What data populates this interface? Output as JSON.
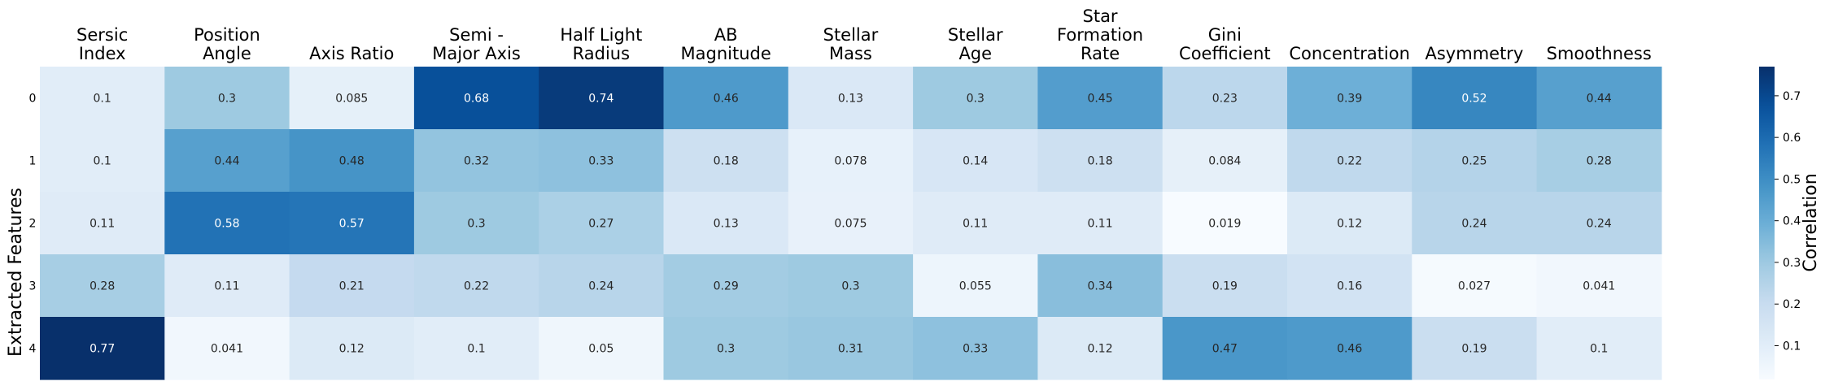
{
  "chart_data": {
    "type": "heatmap",
    "columns": [
      [
        "Sersic",
        "Index"
      ],
      [
        "Position",
        "Angle"
      ],
      [
        "Axis Ratio"
      ],
      [
        "Semi -",
        "Major Axis"
      ],
      [
        "Half Light",
        "Radius"
      ],
      [
        "AB",
        "Magnitude"
      ],
      [
        "Stellar",
        "Mass"
      ],
      [
        "Stellar",
        "Age"
      ],
      [
        "Star",
        "Formation",
        "Rate"
      ],
      [
        "Gini",
        "Coefficient"
      ],
      [
        "Concentration"
      ],
      [
        "Asymmetry"
      ],
      [
        "Smoothness"
      ]
    ],
    "rows": [
      "0",
      "1",
      "2",
      "3",
      "4"
    ],
    "values": [
      [
        0.1,
        0.3,
        0.085,
        0.68,
        0.74,
        0.46,
        0.13,
        0.3,
        0.45,
        0.23,
        0.39,
        0.52,
        0.44
      ],
      [
        0.1,
        0.44,
        0.48,
        0.32,
        0.33,
        0.18,
        0.078,
        0.14,
        0.18,
        0.084,
        0.22,
        0.25,
        0.28
      ],
      [
        0.11,
        0.58,
        0.57,
        0.3,
        0.27,
        0.13,
        0.075,
        0.11,
        0.11,
        0.019,
        0.12,
        0.24,
        0.24
      ],
      [
        0.28,
        0.11,
        0.21,
        0.22,
        0.24,
        0.29,
        0.3,
        0.055,
        0.34,
        0.19,
        0.16,
        0.027,
        0.041
      ],
      [
        0.77,
        0.041,
        0.12,
        0.1,
        0.05,
        0.3,
        0.31,
        0.33,
        0.12,
        0.47,
        0.46,
        0.19,
        0.1
      ]
    ],
    "ylabel": "Extracted Features",
    "colorbar_label": "Correlation",
    "colorbar_ticks": [
      "0.1",
      "0.2",
      "0.3",
      "0.4",
      "0.5",
      "0.6",
      "0.7"
    ],
    "vmin": 0.019,
    "vmax": 0.77,
    "colormap": "Blues",
    "colormap_stops": [
      "#f7fbff",
      "#deebf7",
      "#c6dbef",
      "#9ecae1",
      "#6baed6",
      "#4292c6",
      "#2171b5",
      "#08519c",
      "#08306b"
    ]
  }
}
